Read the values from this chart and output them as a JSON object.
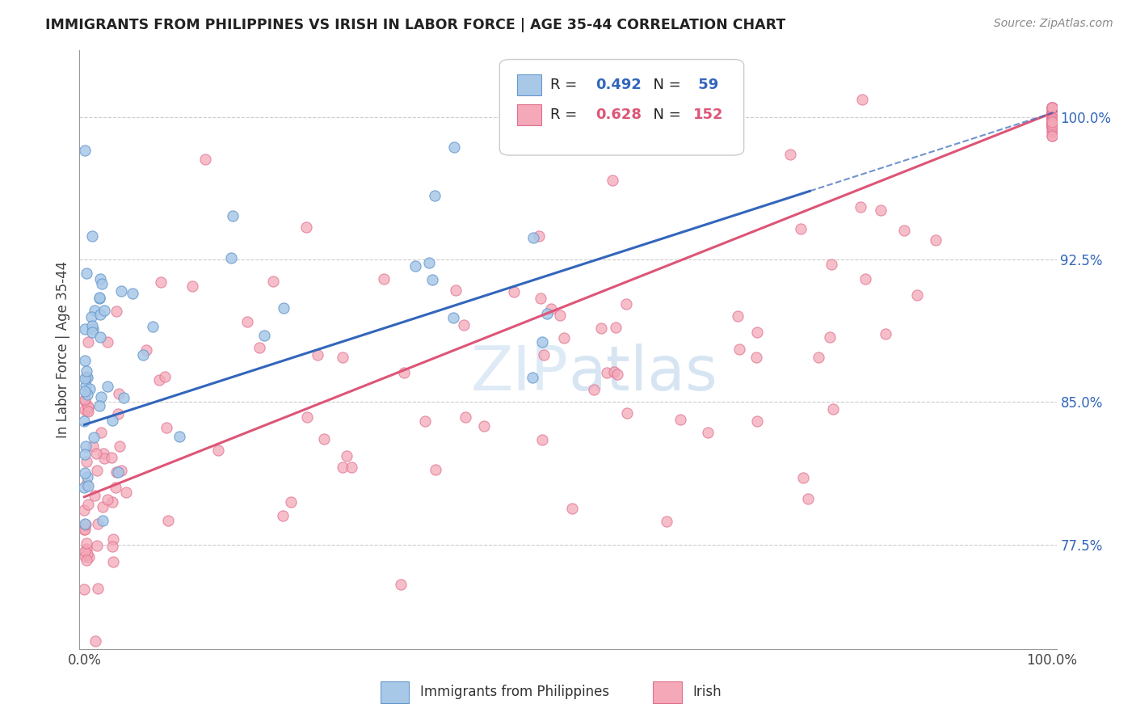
{
  "title": "IMMIGRANTS FROM PHILIPPINES VS IRISH IN LABOR FORCE | AGE 35-44 CORRELATION CHART",
  "source": "Source: ZipAtlas.com",
  "ylabel": "In Labor Force | Age 35-44",
  "blue_color": "#a8c8e8",
  "pink_color": "#f4a8b8",
  "blue_edge": "#6699cc",
  "pink_edge": "#e07090",
  "blue_line_color": "#3366bb",
  "pink_line_color": "#dd5577",
  "ytick_color": "#3366bb",
  "yticks": [
    0.775,
    0.85,
    0.925,
    1.0
  ],
  "ytick_labels": [
    "77.5%",
    "85.0%",
    "92.5%",
    "100.0%"
  ],
  "ylim": [
    0.72,
    1.035
  ],
  "xlim": [
    -0.005,
    1.005
  ],
  "blue_line_x0": 0.0,
  "blue_line_y0": 0.838,
  "blue_line_x1": 1.0,
  "blue_line_y1": 1.002,
  "pink_line_x0": 0.0,
  "pink_line_y0": 0.8,
  "pink_line_x1": 1.0,
  "pink_line_y1": 1.002,
  "watermark_text": "ZIPatlas",
  "watermark_color": "#c8dff0",
  "legend_blue_label": "R = 0.492",
  "legend_blue_n": "N =  59",
  "legend_pink_label": "R = 0.628",
  "legend_pink_n": "N = 152"
}
